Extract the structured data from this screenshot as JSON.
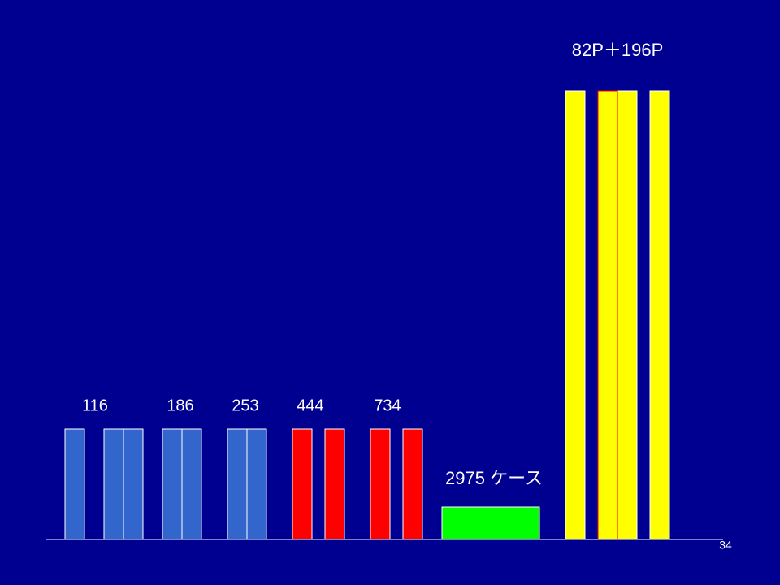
{
  "labels": {
    "group_counts": [
      "116",
      "186",
      "253",
      "444",
      "734"
    ],
    "cases": "2975 ケース",
    "pages": "82P＋196P"
  },
  "page_number": "34"
}
